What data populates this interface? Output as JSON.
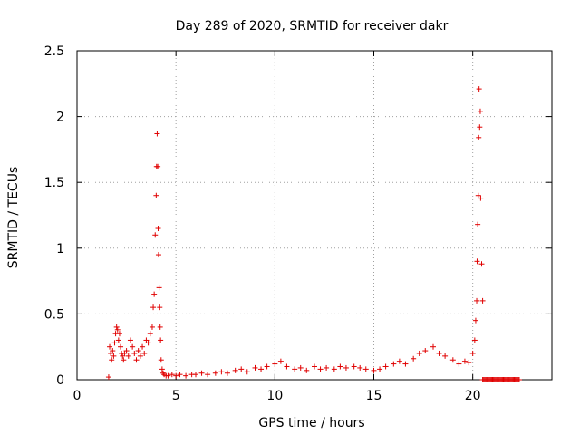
{
  "chart_data": {
    "type": "scatter",
    "title": "Day 289 of 2020, SRMTID for receiver dakr",
    "xlabel": "GPS time / hours",
    "ylabel": "SRMTID / TECUs",
    "xlim": [
      0,
      24
    ],
    "ylim": [
      0,
      2.5
    ],
    "xticks": [
      0,
      5,
      10,
      15,
      20
    ],
    "yticks": [
      0,
      0.5,
      1,
      1.5,
      2,
      2.5
    ],
    "xtick_labels": [
      "0",
      "5",
      "10",
      "15",
      "20"
    ],
    "ytick_labels": [
      "0",
      "0.5",
      "1",
      "1.5",
      "2",
      "2.5"
    ],
    "grid": true,
    "marker": "+",
    "color": "#e00000",
    "series": [
      {
        "name": "SRMTID",
        "x": [
          1.6,
          1.65,
          1.7,
          1.75,
          1.8,
          1.85,
          1.9,
          1.95,
          2.0,
          2.05,
          2.1,
          2.15,
          2.2,
          2.25,
          2.3,
          2.35,
          2.4,
          2.5,
          2.6,
          2.7,
          2.8,
          2.9,
          3.0,
          3.1,
          3.2,
          3.3,
          3.4,
          3.5,
          3.6,
          3.7,
          3.8,
          3.85,
          3.9,
          3.95,
          4.0,
          4.02,
          4.05,
          4.08,
          4.1,
          4.12,
          4.15,
          4.18,
          4.2,
          4.22,
          4.25,
          4.3,
          4.35,
          4.4,
          4.5,
          4.6,
          4.8,
          5.0,
          5.2,
          5.5,
          5.8,
          6.0,
          6.3,
          6.6,
          7.0,
          7.3,
          7.6,
          8.0,
          8.3,
          8.6,
          9.0,
          9.3,
          9.6,
          10.0,
          10.3,
          10.6,
          11.0,
          11.3,
          11.6,
          12.0,
          12.3,
          12.6,
          13.0,
          13.3,
          13.6,
          14.0,
          14.3,
          14.6,
          15.0,
          15.3,
          15.6,
          16.0,
          16.3,
          16.6,
          17.0,
          17.3,
          17.6,
          18.0,
          18.3,
          18.6,
          19.0,
          19.3,
          19.6,
          19.8,
          20.0,
          20.1,
          20.15,
          20.2,
          20.22,
          20.25,
          20.28,
          20.3,
          20.32,
          20.35,
          20.38,
          20.4,
          20.45,
          20.5
        ],
        "y": [
          0.02,
          0.25,
          0.2,
          0.15,
          0.22,
          0.18,
          0.28,
          0.35,
          0.4,
          0.38,
          0.3,
          0.35,
          0.25,
          0.2,
          0.18,
          0.15,
          0.2,
          0.22,
          0.18,
          0.3,
          0.25,
          0.2,
          0.15,
          0.22,
          0.18,
          0.25,
          0.2,
          0.3,
          0.28,
          0.35,
          0.4,
          0.55,
          0.65,
          1.1,
          1.4,
          1.62,
          1.87,
          1.62,
          1.15,
          0.95,
          0.7,
          0.55,
          0.4,
          0.3,
          0.15,
          0.08,
          0.05,
          0.04,
          0.03,
          0.03,
          0.04,
          0.03,
          0.04,
          0.03,
          0.04,
          0.04,
          0.05,
          0.04,
          0.05,
          0.06,
          0.05,
          0.07,
          0.08,
          0.06,
          0.09,
          0.08,
          0.1,
          0.12,
          0.14,
          0.1,
          0.08,
          0.09,
          0.07,
          0.1,
          0.08,
          0.09,
          0.08,
          0.1,
          0.09,
          0.1,
          0.09,
          0.08,
          0.07,
          0.08,
          0.1,
          0.12,
          0.14,
          0.12,
          0.16,
          0.2,
          0.22,
          0.25,
          0.2,
          0.18,
          0.15,
          0.12,
          0.14,
          0.13,
          0.2,
          0.3,
          0.45,
          0.6,
          0.9,
          1.18,
          1.4,
          1.84,
          2.21,
          1.92,
          2.04,
          1.38,
          0.88,
          0.6
        ],
        "flat_x_start": 20.5,
        "flat_x_end": 22.4,
        "flat_y": 0
      }
    ]
  }
}
